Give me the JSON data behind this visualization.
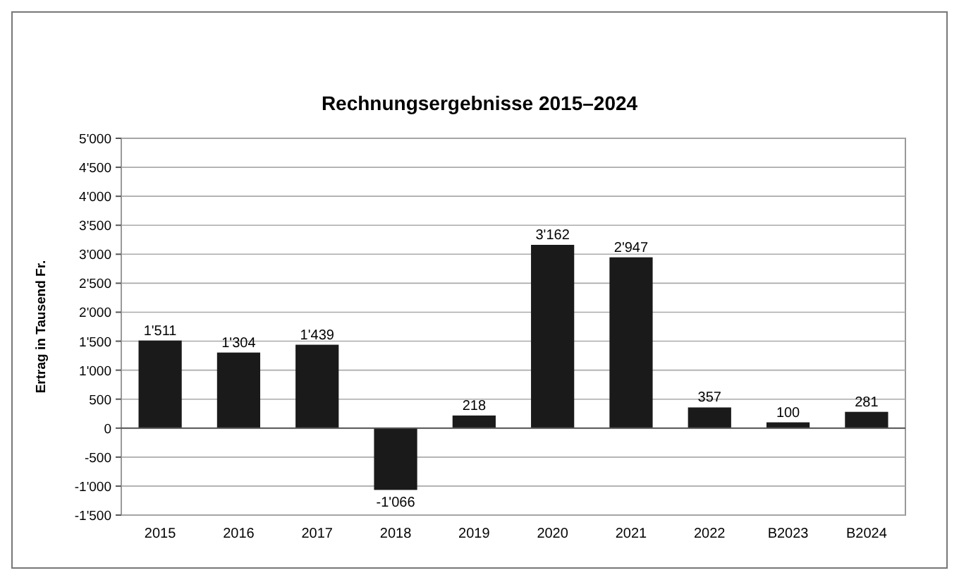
{
  "chart_data": {
    "type": "bar",
    "title": "Rechnungsergebnisse 2015–2024",
    "ylabel": "Ertrag in Tausend Fr.",
    "categories": [
      "2015",
      "2016",
      "2017",
      "2018",
      "2019",
      "2020",
      "2021",
      "2022",
      "B2023",
      "B2024"
    ],
    "values": [
      1511,
      1304,
      1439,
      -1066,
      218,
      3162,
      2947,
      357,
      100,
      281
    ],
    "value_labels": [
      "1'511",
      "1'304",
      "1'439",
      "-1'066",
      "218",
      "3'162",
      "2'947",
      "357",
      "100",
      "281"
    ],
    "color": "#1a1a1a",
    "ylim": [
      -1500,
      5000
    ],
    "yticks": [
      {
        "value": -1500,
        "label": "-1'500"
      },
      {
        "value": -1000,
        "label": "-1'000"
      },
      {
        "value": -500,
        "label": "-500"
      },
      0,
      500,
      {
        "value": 1000,
        "label": "1'000"
      },
      {
        "value": 1500,
        "label": "1'500"
      },
      {
        "value": 2000,
        "label": "2'000"
      },
      {
        "value": 2500,
        "label": "2'500"
      },
      {
        "value": 3000,
        "label": "3'000"
      },
      {
        "value": 3500,
        "label": "3'500"
      },
      {
        "value": 4000,
        "label": "4'000"
      },
      {
        "value": 4500,
        "label": "4'500"
      },
      {
        "value": 5000,
        "label": "5'000"
      }
    ],
    "grid": "y"
  }
}
